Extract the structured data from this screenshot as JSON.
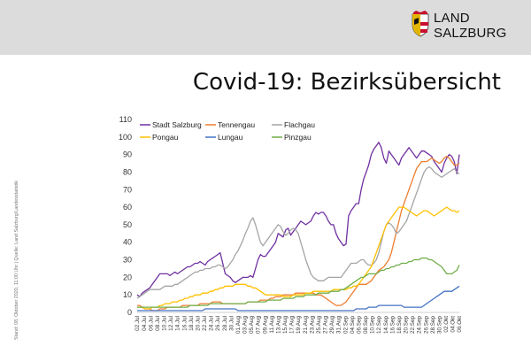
{
  "header": {
    "logo_line1": "LAND",
    "logo_line2": "SALZBURG",
    "title": "Covid-19: Bezirksübersicht"
  },
  "source_note": "Stand: 08. Oktober 2020, 11:00 Uhr | Quelle: Land Salzburg/Landesstatistik",
  "colors": {
    "band": "#dcdcdc",
    "shield_red": "#c8102e",
    "shield_gold": "#e3b505"
  },
  "chart_data": {
    "type": "line",
    "title": "",
    "xlabel": "",
    "ylabel": "",
    "ylim": [
      0,
      110
    ],
    "yticks": [
      0,
      10,
      20,
      30,
      40,
      50,
      60,
      70,
      80,
      90,
      100,
      110
    ],
    "xtick_labels": [
      "02.Jul",
      "04.Jul",
      "06.Jul",
      "08.Jul",
      "10.Jul",
      "12.Jul",
      "14.Jul",
      "16.Jul",
      "18.Jul",
      "20.Jul",
      "22.Jul",
      "24.Jul",
      "26.Jul",
      "28.Jul",
      "30.Jul",
      "01.Aug",
      "03.Aug",
      "05.Aug",
      "07.Aug",
      "09.Aug",
      "11.Aug",
      "13.Aug",
      "15.Aug",
      "17.Aug",
      "19.Aug",
      "21.Aug",
      "23.Aug",
      "25.Aug",
      "27.Aug",
      "29.Aug",
      "31.Aug",
      "02.Sep",
      "04.Sep",
      "06.Sep",
      "08.Sep",
      "10.Sep",
      "12.Sep",
      "14.Sep",
      "16.Sep",
      "18.Sep",
      "20.Sep",
      "22.Sep",
      "24.Sep",
      "26.Sep",
      "28.Sep",
      "30.Sep",
      "02.Okt",
      "04.Okt",
      "06.Okt"
    ],
    "grid": false,
    "legend_position": "top-left",
    "series": [
      {
        "name": "Stadt Salzburg",
        "color": "#7030a0",
        "values": [
          10,
          9,
          11,
          12,
          13,
          14,
          16,
          18,
          20,
          22,
          22,
          22,
          22,
          21,
          22,
          23,
          22,
          23,
          24,
          25,
          26,
          26,
          27,
          28,
          28,
          29,
          28,
          27,
          29,
          30,
          31,
          32,
          33,
          34,
          28,
          22,
          21,
          20,
          18,
          17,
          18,
          19,
          20,
          20,
          20,
          21,
          20,
          25,
          30,
          33,
          32,
          32,
          34,
          36,
          38,
          40,
          45,
          44,
          43,
          47,
          48,
          44,
          46,
          48,
          50,
          52,
          51,
          50,
          51,
          52,
          55,
          57,
          56,
          57,
          57,
          55,
          52,
          50,
          50,
          45,
          42,
          40,
          38,
          39,
          55,
          58,
          60,
          62,
          62,
          70,
          76,
          80,
          84,
          90,
          93,
          95,
          97,
          94,
          88,
          85,
          92,
          90,
          88,
          86,
          84,
          88,
          90,
          92,
          94,
          92,
          90,
          88,
          90,
          92,
          92,
          91,
          90,
          89,
          86,
          84,
          82,
          80,
          85,
          88,
          90,
          89,
          86,
          79,
          90
        ]
      },
      {
        "name": "Tennengau",
        "color": "#ed7d31",
        "values": [
          4,
          4,
          3,
          2,
          2,
          2,
          1,
          1,
          1,
          2,
          2,
          2,
          3,
          3,
          3,
          3,
          3,
          3,
          4,
          4,
          4,
          4,
          4,
          4,
          4,
          5,
          5,
          5,
          5,
          5,
          6,
          6,
          6,
          6,
          5,
          5,
          5,
          5,
          5,
          5,
          5,
          5,
          5,
          5,
          6,
          6,
          6,
          6,
          6,
          7,
          7,
          7,
          7,
          8,
          8,
          9,
          9,
          9,
          10,
          10,
          10,
          10,
          10,
          11,
          11,
          11,
          11,
          11,
          11,
          11,
          11,
          10,
          10,
          10,
          9,
          8,
          7,
          6,
          5,
          4,
          4,
          4,
          5,
          6,
          8,
          10,
          12,
          14,
          16,
          16,
          16,
          16,
          17,
          18,
          20,
          22,
          24,
          25,
          26,
          28,
          30,
          34,
          40,
          46,
          52,
          58,
          62,
          66,
          70,
          74,
          78,
          82,
          84,
          86,
          86,
          86,
          87,
          88,
          87,
          86,
          85,
          86,
          88,
          89,
          88,
          86,
          84,
          84,
          85
        ]
      },
      {
        "name": "Flachgau",
        "color": "#a5a5a5",
        "values": [
          8,
          9,
          10,
          11,
          12,
          13,
          13,
          13,
          13,
          13,
          14,
          15,
          15,
          15,
          15,
          16,
          16,
          17,
          18,
          19,
          20,
          21,
          22,
          23,
          23,
          24,
          24,
          25,
          25,
          25,
          26,
          26,
          27,
          27,
          26,
          25,
          26,
          28,
          30,
          33,
          35,
          38,
          41,
          45,
          48,
          52,
          54,
          50,
          45,
          40,
          38,
          40,
          42,
          44,
          46,
          48,
          50,
          49,
          46,
          44,
          45,
          47,
          48,
          47,
          45,
          40,
          35,
          30,
          26,
          22,
          20,
          19,
          18,
          18,
          18,
          19,
          20,
          20,
          20,
          20,
          20,
          20,
          22,
          24,
          26,
          28,
          28,
          28,
          29,
          30,
          30,
          28,
          27,
          27,
          28,
          30,
          34,
          40,
          46,
          50,
          51,
          50,
          48,
          45,
          46,
          48,
          50,
          52,
          56,
          60,
          64,
          68,
          72,
          76,
          80,
          82,
          83,
          82,
          80,
          79,
          78,
          77,
          78,
          79,
          80,
          81,
          82,
          80,
          79
        ]
      },
      {
        "name": "Pongau",
        "color": "#ffc000",
        "values": [
          3,
          3,
          3,
          2,
          2,
          2,
          3,
          3,
          3,
          4,
          4,
          5,
          5,
          5,
          6,
          6,
          6,
          7,
          7,
          8,
          8,
          9,
          9,
          10,
          10,
          10,
          11,
          11,
          11,
          12,
          12,
          13,
          13,
          14,
          14,
          15,
          15,
          15,
          15,
          16,
          16,
          16,
          16,
          16,
          15,
          15,
          14,
          14,
          13,
          12,
          11,
          10,
          10,
          10,
          10,
          10,
          10,
          10,
          9,
          9,
          9,
          9,
          10,
          10,
          10,
          10,
          10,
          11,
          11,
          11,
          12,
          12,
          12,
          12,
          12,
          12,
          12,
          12,
          13,
          13,
          13,
          13,
          13,
          13,
          14,
          14,
          15,
          15,
          16,
          18,
          20,
          22,
          24,
          26,
          30,
          34,
          38,
          42,
          46,
          50,
          52,
          54,
          56,
          58,
          60,
          60,
          60,
          59,
          58,
          57,
          56,
          55,
          56,
          57,
          58,
          58,
          57,
          56,
          55,
          56,
          57,
          58,
          59,
          60,
          59,
          58,
          58,
          57,
          58
        ]
      },
      {
        "name": "Lungau",
        "color": "#4472c4",
        "values": [
          1,
          1,
          1,
          1,
          1,
          1,
          1,
          1,
          1,
          1,
          1,
          1,
          1,
          1,
          1,
          1,
          1,
          1,
          1,
          1,
          1,
          1,
          1,
          1,
          1,
          1,
          1,
          2,
          2,
          2,
          2,
          2,
          2,
          2,
          2,
          2,
          2,
          2,
          2,
          2,
          1,
          1,
          1,
          1,
          1,
          1,
          1,
          1,
          1,
          1,
          1,
          1,
          1,
          1,
          1,
          1,
          1,
          1,
          1,
          1,
          1,
          1,
          1,
          1,
          1,
          1,
          1,
          1,
          1,
          1,
          1,
          1,
          1,
          1,
          1,
          1,
          1,
          1,
          1,
          1,
          1,
          1,
          1,
          1,
          1,
          1,
          1,
          2,
          2,
          2,
          2,
          2,
          3,
          3,
          3,
          3,
          4,
          4,
          4,
          4,
          4,
          4,
          4,
          4,
          4,
          4,
          3,
          3,
          3,
          3,
          3,
          3,
          3,
          3,
          4,
          5,
          6,
          7,
          8,
          9,
          10,
          11,
          12,
          12,
          12,
          12,
          13,
          14,
          15
        ]
      },
      {
        "name": "Pinzgau",
        "color": "#70ad47",
        "values": [
          3,
          3,
          3,
          3,
          3,
          3,
          3,
          3,
          3,
          3,
          3,
          3,
          3,
          3,
          3,
          3,
          3,
          3,
          3,
          3,
          3,
          4,
          4,
          4,
          4,
          4,
          4,
          4,
          4,
          5,
          5,
          5,
          5,
          5,
          5,
          5,
          5,
          5,
          5,
          5,
          5,
          5,
          5,
          5,
          6,
          6,
          6,
          6,
          6,
          6,
          6,
          6,
          7,
          7,
          7,
          7,
          7,
          7,
          8,
          8,
          8,
          8,
          8,
          9,
          9,
          9,
          9,
          10,
          10,
          10,
          10,
          10,
          11,
          11,
          11,
          11,
          11,
          12,
          12,
          12,
          12,
          13,
          13,
          14,
          15,
          16,
          17,
          18,
          19,
          20,
          20,
          21,
          22,
          22,
          22,
          22,
          23,
          24,
          24,
          25,
          25,
          26,
          26,
          27,
          27,
          28,
          28,
          28,
          29,
          29,
          30,
          30,
          30,
          31,
          31,
          31,
          30,
          30,
          29,
          28,
          27,
          26,
          24,
          22,
          22,
          22,
          23,
          24,
          27
        ]
      }
    ]
  }
}
